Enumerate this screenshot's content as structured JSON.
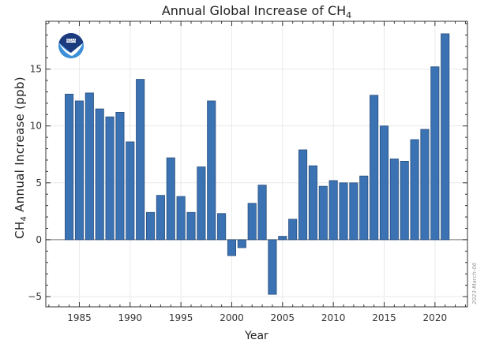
{
  "chart_data": {
    "type": "bar",
    "title": "Annual Global Increase of CH",
    "title_subscript": "4",
    "xlabel": "Year",
    "ylabel_prefix": "CH",
    "ylabel_subscript": "4",
    "ylabel_suffix": " Annual Increase (ppb)",
    "xlim": [
      1981.7,
      2023.2
    ],
    "ylim": [
      -5.9,
      19.2
    ],
    "x_ticks": [
      1985,
      1990,
      1995,
      2000,
      2005,
      2010,
      2015,
      2020
    ],
    "x_tick_labels": [
      "1985",
      "1990",
      "1995",
      "2000",
      "2005",
      "2010",
      "2015",
      "2020"
    ],
    "y_ticks": [
      -5,
      0,
      5,
      10,
      15
    ],
    "y_tick_labels": [
      "−5",
      "0",
      "5",
      "10",
      "15"
    ],
    "grid": true,
    "bar_color": "#3a72b3",
    "categories": [
      1984,
      1985,
      1986,
      1987,
      1988,
      1989,
      1990,
      1991,
      1992,
      1993,
      1994,
      1995,
      1996,
      1997,
      1998,
      1999,
      2000,
      2001,
      2002,
      2003,
      2004,
      2005,
      2006,
      2007,
      2008,
      2009,
      2010,
      2011,
      2012,
      2013,
      2014,
      2015,
      2016,
      2017,
      2018,
      2019,
      2020,
      2021
    ],
    "values": [
      12.8,
      12.2,
      12.9,
      11.5,
      10.8,
      11.2,
      8.6,
      14.1,
      2.4,
      3.9,
      7.2,
      3.8,
      2.4,
      6.4,
      12.2,
      2.3,
      -1.4,
      -0.7,
      3.2,
      4.8,
      -4.8,
      0.3,
      1.8,
      7.9,
      6.5,
      4.7,
      5.2,
      5.0,
      5.0,
      5.6,
      12.7,
      10.0,
      7.1,
      6.9,
      8.8,
      9.7,
      15.2,
      18.1
    ],
    "watermark": "2023-March-06",
    "logo": "noaa-logo"
  }
}
